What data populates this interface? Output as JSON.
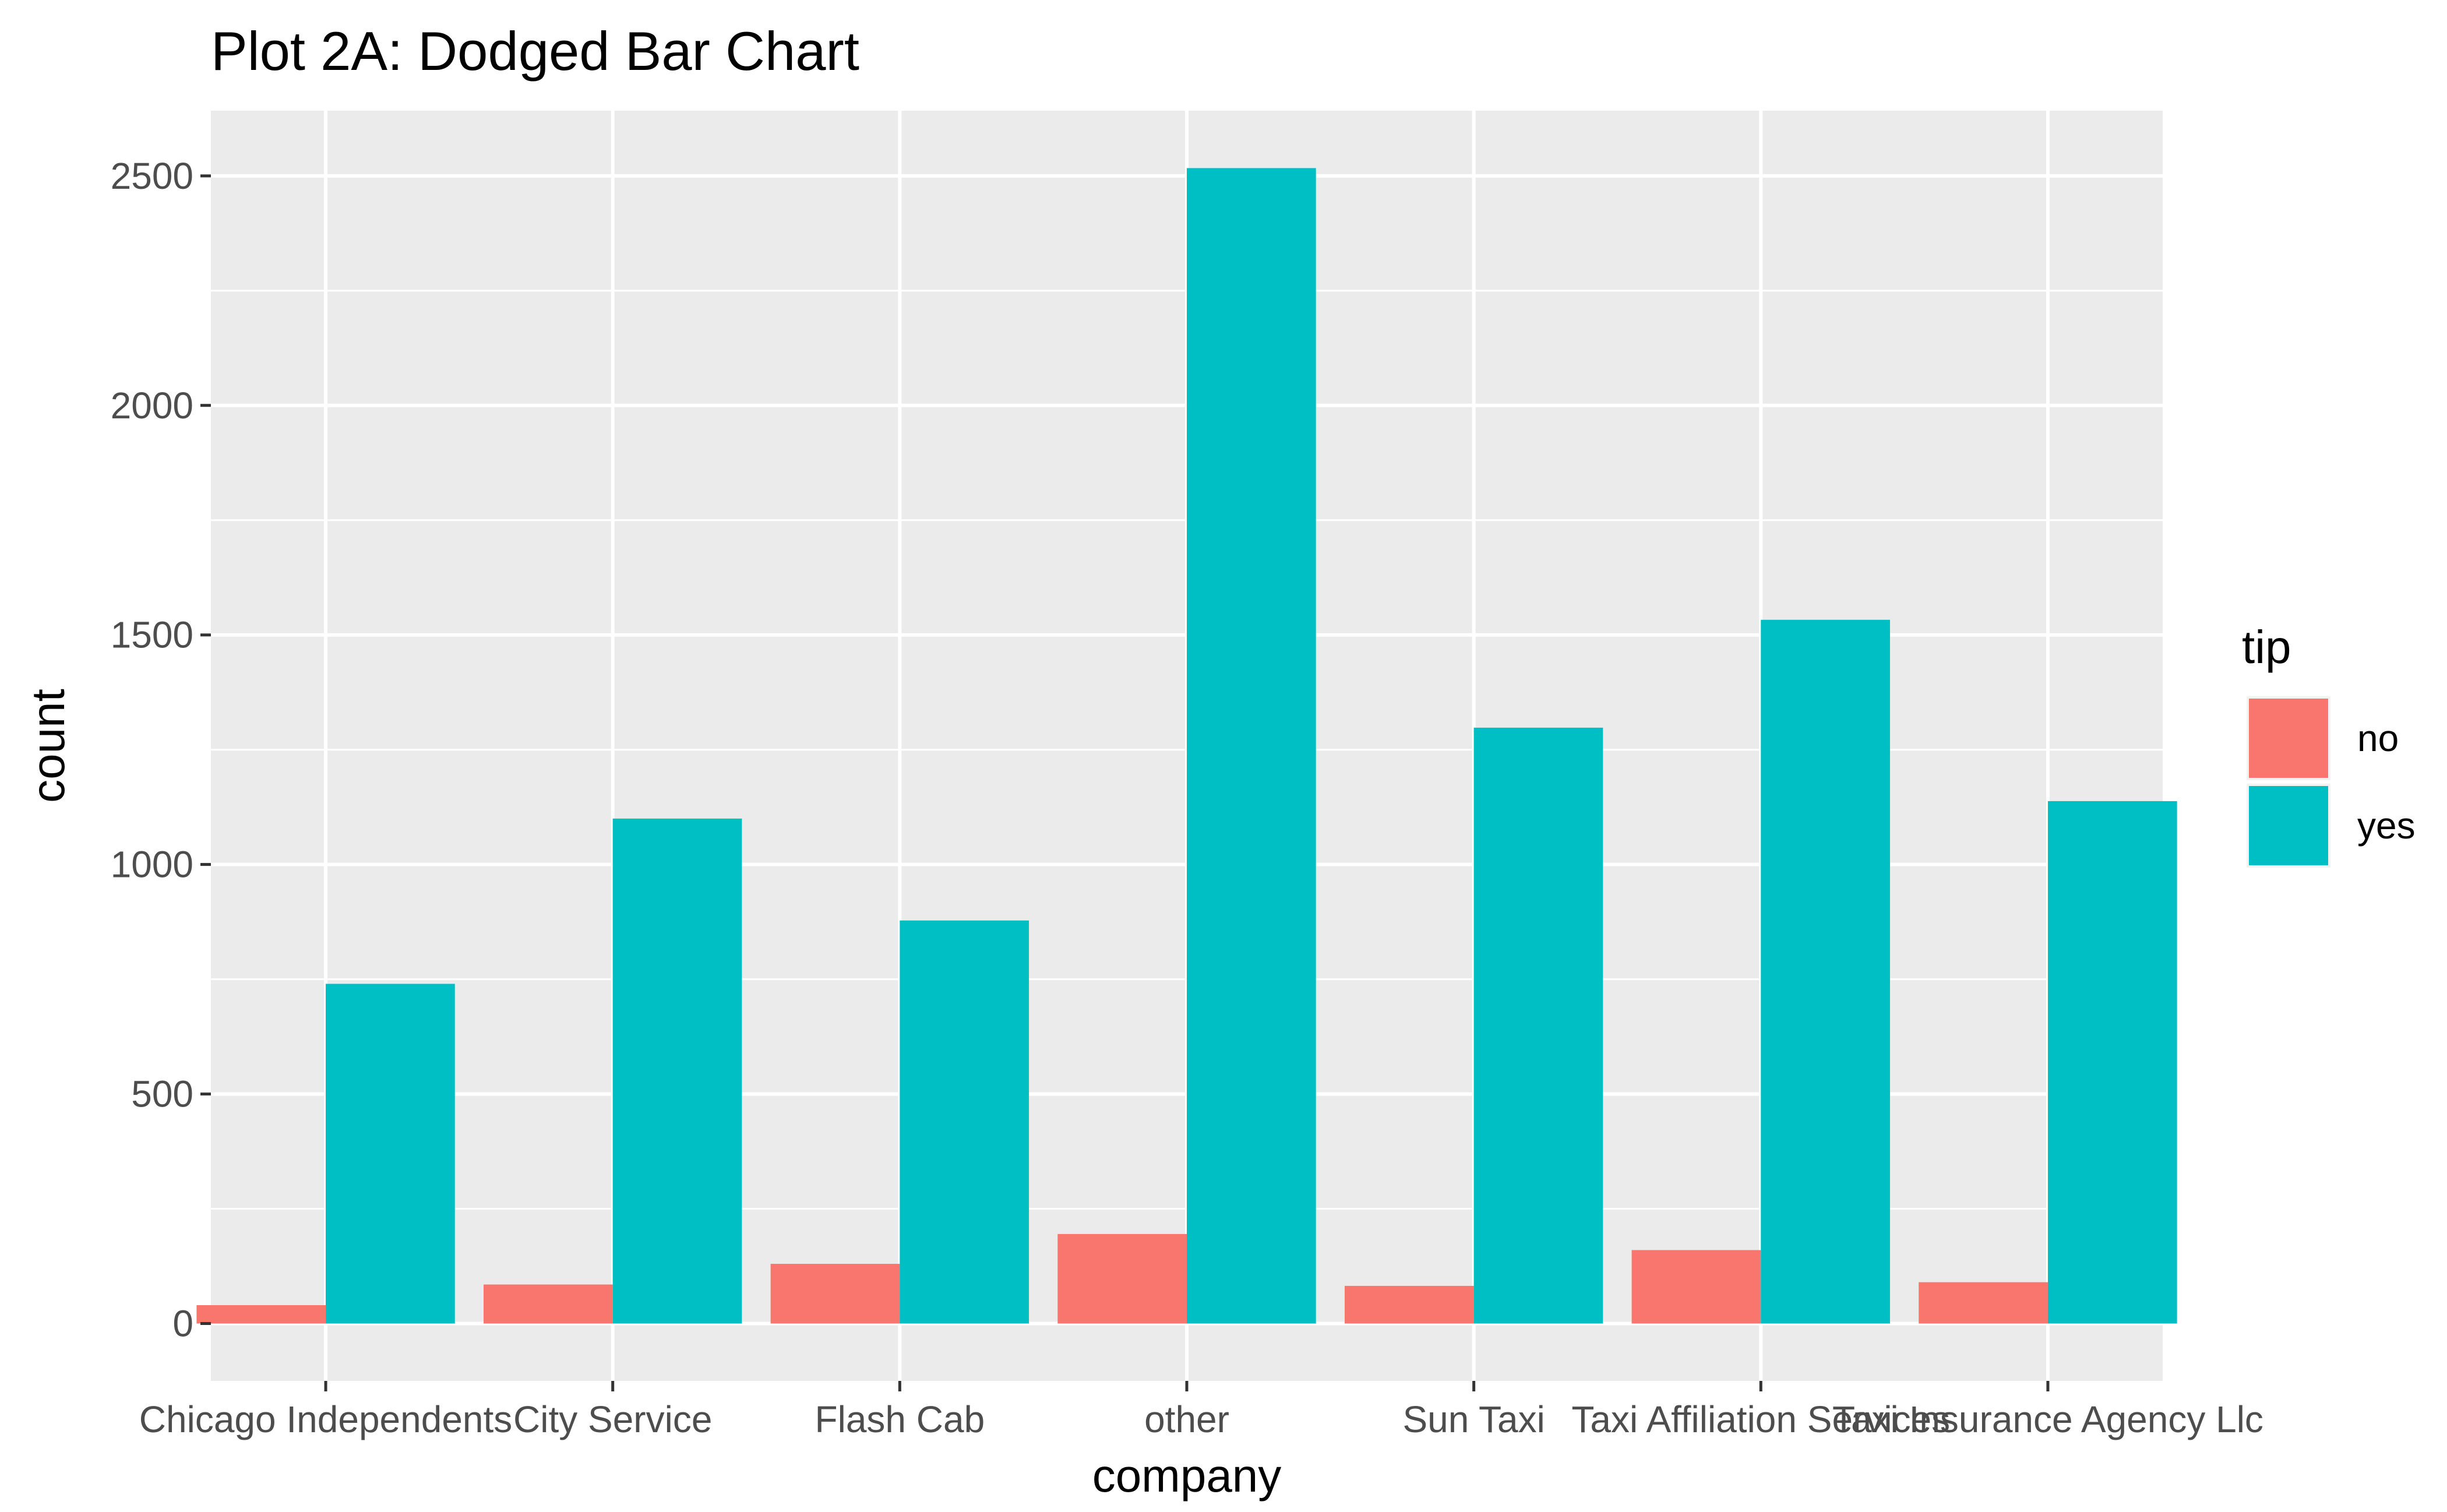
{
  "chart_data": {
    "type": "bar",
    "title": "Plot 2A: Dodged Bar Chart",
    "xlabel": "company",
    "ylabel": "count",
    "categories": [
      "Chicago Independents",
      "City Service",
      "Flash Cab",
      "other",
      "Sun Taxi",
      "Taxi Affiliation Services",
      "Taxi Insurance Agency Llc"
    ],
    "series": [
      {
        "name": "no",
        "color": "#F8766D",
        "values": [
          40,
          85,
          130,
          195,
          82,
          160,
          90
        ]
      },
      {
        "name": "yes",
        "color": "#00BFC4",
        "values": [
          740,
          1100,
          878,
          2517,
          1298,
          1533,
          1138
        ]
      }
    ],
    "ylim": [
      -125,
      2642
    ],
    "yticks": [
      0,
      500,
      1000,
      1500,
      2000,
      2500
    ],
    "grid": true,
    "legend": {
      "title": "tip",
      "position": "right"
    },
    "colors": {
      "panel_background": "#EBEBEB",
      "grid": "#FFFFFF",
      "tick_text": "#4D4D4D"
    }
  }
}
